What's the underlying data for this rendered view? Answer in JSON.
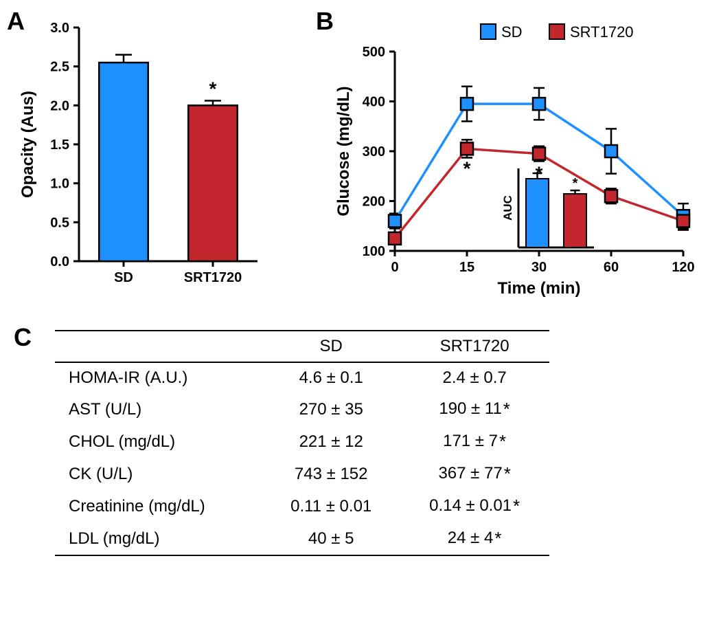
{
  "colors": {
    "sd": "#1e90ff",
    "srt": "#c1272d",
    "axis": "#000000",
    "background": "#ffffff"
  },
  "panelA": {
    "label": "A",
    "type": "bar",
    "ylabel": "Opacity (Aus)",
    "ylim": [
      0,
      3.0
    ],
    "ytick_step": 0.5,
    "categories": [
      "SD",
      "SRT1720"
    ],
    "values": [
      2.55,
      2.0
    ],
    "errors": [
      0.1,
      0.06
    ],
    "bar_colors": [
      "#1e90ff",
      "#c1272d"
    ],
    "sig": [
      false,
      true
    ],
    "bar_width": 0.55,
    "label_fontsize": 24,
    "tick_fontsize": 20
  },
  "panelB": {
    "label": "B",
    "type": "line",
    "xlabel": "Time (min)",
    "ylabel": "Glucose (mg/dL)",
    "x_categories": [
      0,
      15,
      30,
      60,
      120
    ],
    "ylim": [
      100,
      500
    ],
    "ytick_step": 100,
    "series": {
      "SD": {
        "color": "#1e90ff",
        "values": [
          160,
          395,
          395,
          300,
          170
        ],
        "errors": [
          15,
          35,
          32,
          45,
          25
        ]
      },
      "SRT1720": {
        "color": "#c1272d",
        "values": [
          125,
          305,
          295,
          210,
          160
        ],
        "errors": [
          12,
          18,
          15,
          15,
          18
        ]
      }
    },
    "sig_points": [
      false,
      true,
      true,
      false,
      false
    ],
    "legend": {
      "items": [
        "SD",
        "SRT1720"
      ]
    },
    "inset": {
      "ylabel": "AUC",
      "categories": [
        "SD",
        "SRT1720"
      ],
      "values": [
        1.0,
        0.78
      ],
      "errors": [
        0.08,
        0.05
      ],
      "sig": [
        false,
        true
      ]
    }
  },
  "panelC": {
    "label": "C",
    "type": "table",
    "columns": [
      "",
      "SD",
      "SRT1720"
    ],
    "rows": [
      {
        "label": "HOMA-IR (A.U.)",
        "sd": "4.6 ± 0.1",
        "srt": "2.4 ± 0.7",
        "sig": false
      },
      {
        "label": "AST (U/L)",
        "sd": "270 ± 35",
        "srt": "190 ± 11",
        "sig": true
      },
      {
        "label": "CHOL (mg/dL)",
        "sd": "221 ± 12",
        "srt": "171 ± 7",
        "sig": true
      },
      {
        "label": "CK (U/L)",
        "sd": "743 ± 152",
        "srt": "367 ± 77",
        "sig": true
      },
      {
        "label": "Creatinine (mg/dL)",
        "sd": "0.11 ± 0.01",
        "srt": "0.14 ± 0.01",
        "sig": true
      },
      {
        "label": "LDL (mg/dL)",
        "sd": "40 ± 5",
        "srt": "24 ± 4",
        "sig": true
      }
    ]
  }
}
